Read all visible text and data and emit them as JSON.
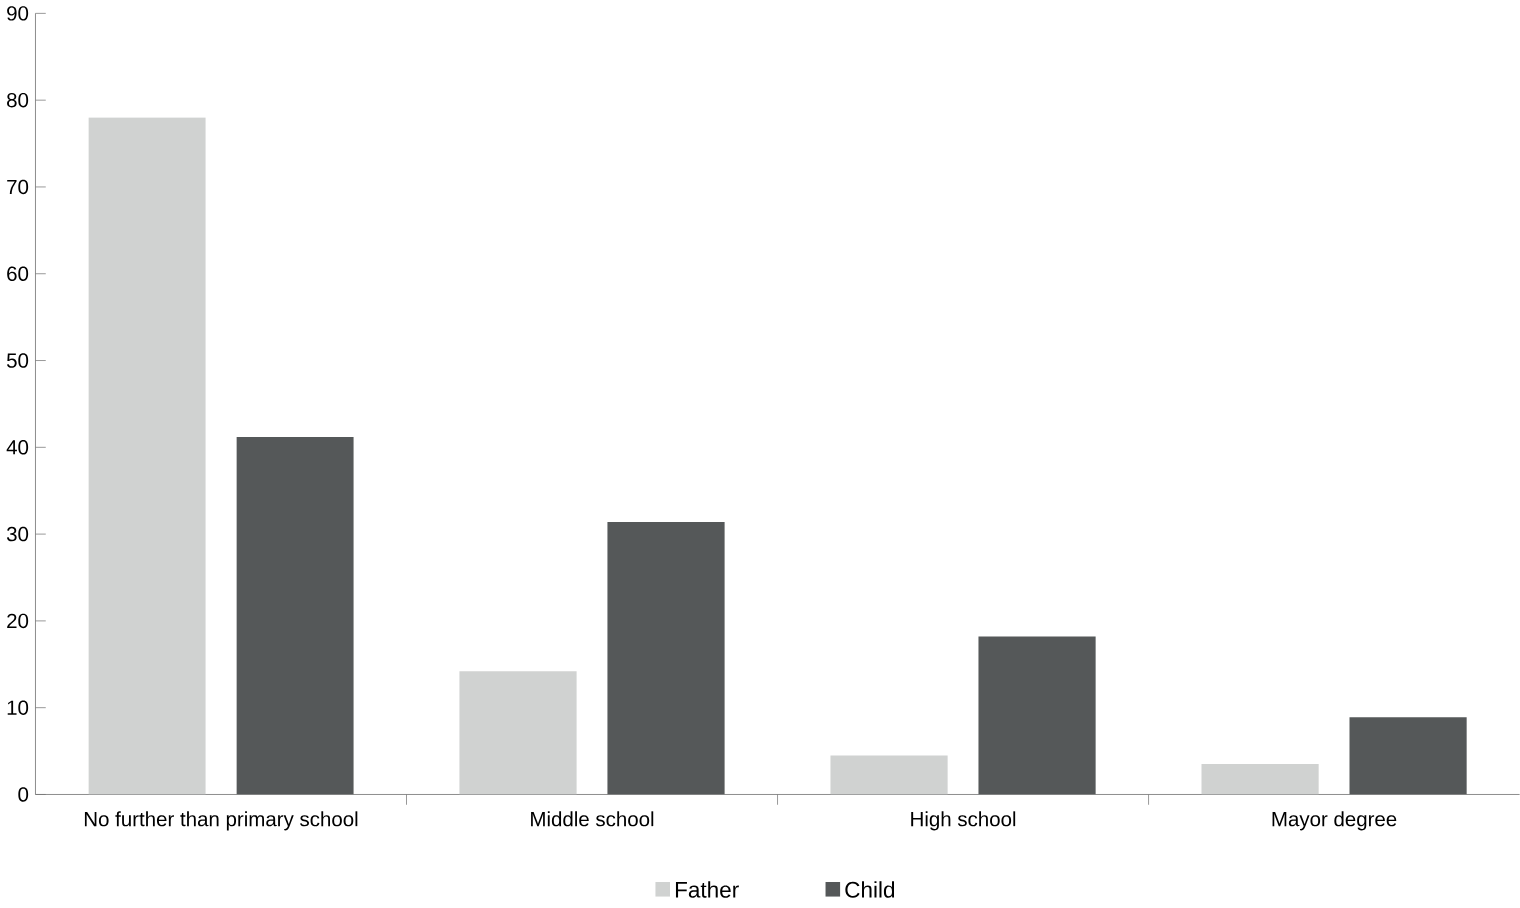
{
  "chart_data": {
    "type": "bar",
    "categories": [
      "No further than primary school",
      "Middle school",
      "High school",
      "Mayor degree"
    ],
    "series": [
      {
        "name": "Father",
        "color": "#d0d2d1",
        "values": [
          78,
          14.2,
          4.5,
          3.5
        ]
      },
      {
        "name": "Child",
        "color": "#555859",
        "values": [
          41.2,
          31.4,
          18.2,
          8.9
        ]
      }
    ],
    "ylim": [
      0,
      90
    ],
    "yticks": [
      0,
      10,
      20,
      30,
      40,
      50,
      60,
      70,
      80,
      90
    ],
    "grid": false,
    "legend": "bottom"
  }
}
